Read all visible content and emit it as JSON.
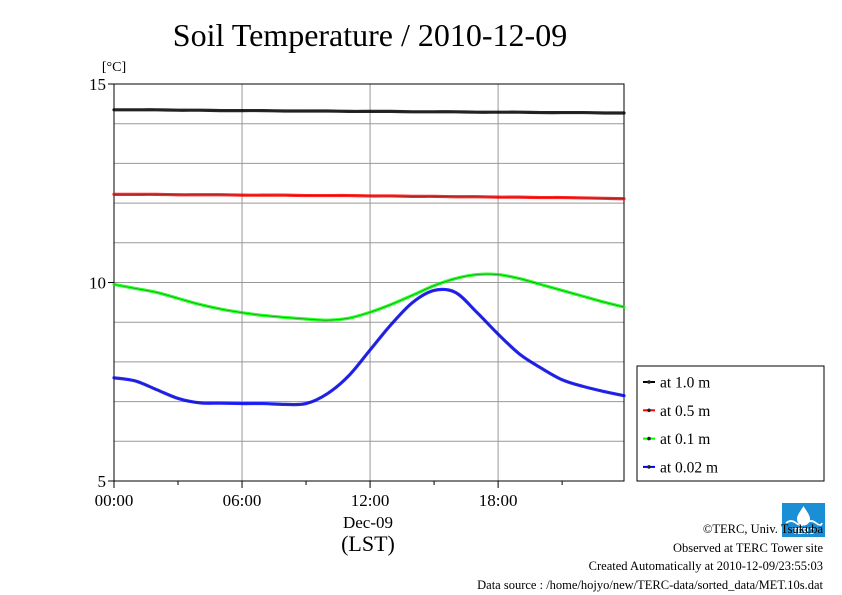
{
  "chart_data": {
    "type": "line",
    "title": "Soil Temperature / 2010-12-09",
    "ylabel": "[°C]",
    "xlabel": "(LST)",
    "date_label": "Dec-09",
    "ylim": [
      5,
      15
    ],
    "xlim": [
      0,
      23.9
    ],
    "x_ticks": [
      "00:00",
      "06:00",
      "12:00",
      "18:00"
    ],
    "x_tick_hours": [
      0,
      6,
      12,
      18
    ],
    "y_ticks": [
      "5",
      "10",
      "15"
    ],
    "y_tick_values": [
      5,
      10,
      15
    ],
    "grid": true,
    "legend_position": "bottom-right, outside plot",
    "x": [
      0,
      1,
      2,
      3,
      4,
      5,
      6,
      7,
      8,
      9,
      10,
      11,
      12,
      13,
      14,
      15,
      16,
      17,
      18,
      19,
      20,
      21,
      22,
      23,
      23.9
    ],
    "series": [
      {
        "name": "at 1.0 m",
        "color": "#000000",
        "values": [
          14.35,
          14.35,
          14.35,
          14.34,
          14.34,
          14.33,
          14.33,
          14.33,
          14.32,
          14.32,
          14.32,
          14.31,
          14.31,
          14.31,
          14.3,
          14.3,
          14.3,
          14.29,
          14.29,
          14.29,
          14.28,
          14.28,
          14.28,
          14.27,
          14.27
        ]
      },
      {
        "name": "at 0.5 m",
        "color": "#ff0000",
        "values": [
          12.22,
          12.22,
          12.22,
          12.21,
          12.21,
          12.21,
          12.2,
          12.2,
          12.2,
          12.19,
          12.19,
          12.19,
          12.18,
          12.18,
          12.17,
          12.17,
          12.16,
          12.16,
          12.15,
          12.15,
          12.14,
          12.14,
          12.13,
          12.12,
          12.11
        ]
      },
      {
        "name": "at 0.1 m",
        "color": "#00ff00",
        "values": [
          9.95,
          9.85,
          9.75,
          9.6,
          9.45,
          9.33,
          9.24,
          9.17,
          9.12,
          9.08,
          9.05,
          9.1,
          9.25,
          9.45,
          9.68,
          9.92,
          10.1,
          10.2,
          10.2,
          10.1,
          9.95,
          9.8,
          9.65,
          9.5,
          9.38
        ]
      },
      {
        "name": "at 0.02 m",
        "color": "#0000ff",
        "values": [
          7.6,
          7.52,
          7.3,
          7.08,
          6.97,
          6.96,
          6.95,
          6.95,
          6.93,
          6.95,
          7.2,
          7.65,
          8.3,
          8.95,
          9.5,
          9.8,
          9.75,
          9.25,
          8.7,
          8.2,
          7.85,
          7.55,
          7.38,
          7.25,
          7.15
        ]
      }
    ]
  },
  "credits": {
    "copyright": "©TERC, Univ. Tsukuba",
    "observed": "Observed at TERC Tower site",
    "created": "Created Automatically at 2010-12-09/23:55:03",
    "source": "Data source : /home/hojyo/new/TERC-data/sorted_data/MET.10s.dat"
  },
  "logo": {
    "text": "TERC",
    "color": "#1a8fd6"
  }
}
